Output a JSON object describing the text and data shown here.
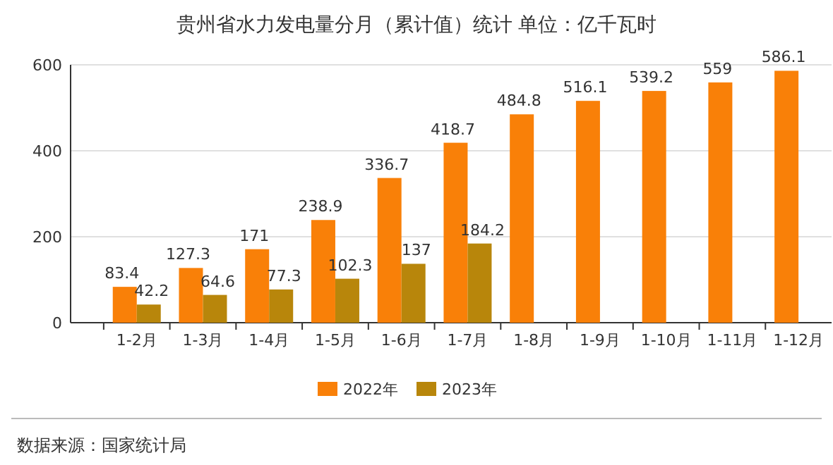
{
  "chart_data": {
    "type": "bar",
    "title": "贵州省水力发电量分月（累计值）统计 单位：亿千瓦时",
    "categories": [
      "1-2月",
      "1-3月",
      "1-4月",
      "1-5月",
      "1-6月",
      "1-7月",
      "1-8月",
      "1-9月",
      "1-10月",
      "1-11月",
      "1-12月"
    ],
    "series": [
      {
        "name": "2022年",
        "color": "#f98008",
        "values": [
          83.4,
          127.3,
          171,
          238.9,
          336.7,
          418.7,
          484.8,
          516.1,
          539.2,
          559,
          586.1
        ]
      },
      {
        "name": "2023年",
        "color": "#b8860b",
        "values": [
          42.2,
          64.6,
          77.3,
          102.3,
          137,
          184.2,
          null,
          null,
          null,
          null,
          null
        ]
      }
    ],
    "ylim": [
      0,
      600
    ],
    "yticks": [
      0,
      200,
      400,
      600
    ],
    "grid": "y",
    "legend": "bottom",
    "data_labels": true,
    "annotations": [
      "数据来源：国家统计局"
    ]
  }
}
